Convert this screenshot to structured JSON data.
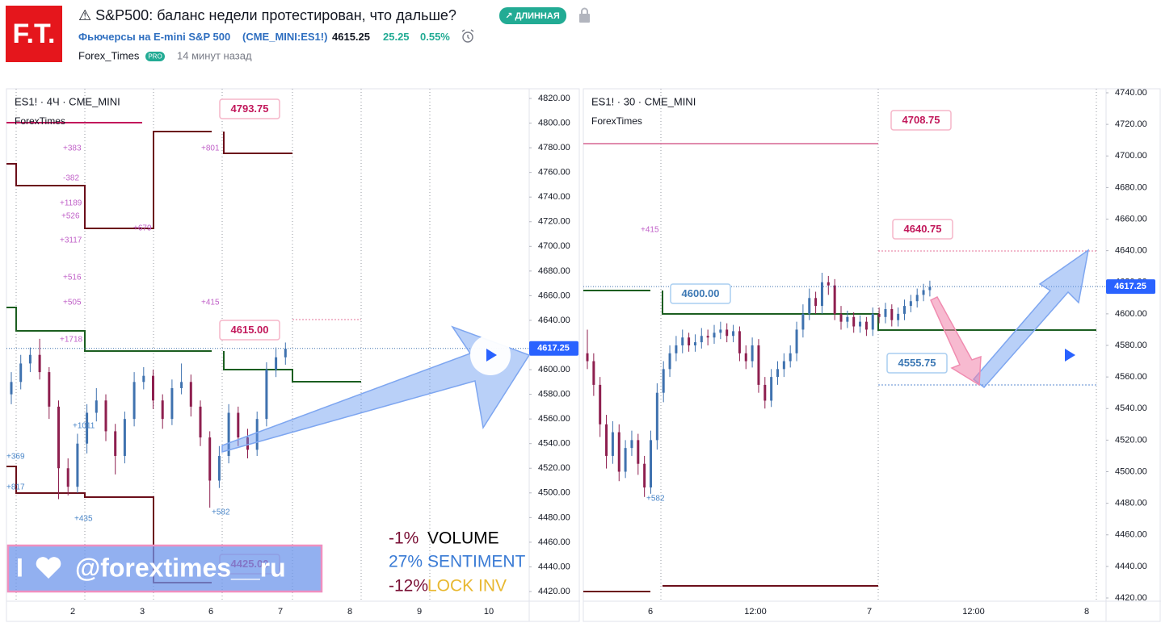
{
  "header": {
    "logo": "F.T.",
    "title": "⚠ S&P500: баланс недели протестирован, что дальше?",
    "badge": "↗ ДЛИННАЯ",
    "symbol_name": "Фьючерсы на E-mini S&P 500",
    "symbol_code": "(CME_MINI:ES1!)",
    "price": "4615.25",
    "change": "25.25",
    "change_pct": "0.55%",
    "author": "Forex_Times",
    "author_badge": "PRO",
    "time": "14 минут назад"
  },
  "charts": [
    {
      "type": "candlestick",
      "title": "ES1! · 4Ч · CME_MINI",
      "indicator": "ForexTimes",
      "ylim": [
        4420,
        4820
      ],
      "yticks": [
        {
          "value": 4420,
          "label": "4420.00"
        },
        {
          "value": 4440,
          "label": "4440.00"
        },
        {
          "value": 4460,
          "label": "4460.00"
        },
        {
          "value": 4480,
          "label": "4480.00"
        },
        {
          "value": 4500,
          "label": "4500.00"
        },
        {
          "value": 4520,
          "label": "4520.00"
        },
        {
          "value": 4540,
          "label": "4540.00"
        },
        {
          "value": 4560,
          "label": "4560.00"
        },
        {
          "value": 4580,
          "label": "4580.00"
        },
        {
          "value": 4600,
          "label": "4600.00"
        },
        {
          "value": 4620,
          "label": "4620.00"
        },
        {
          "value": 4640,
          "label": "4640.00"
        },
        {
          "value": 4660,
          "label": "4660.00"
        },
        {
          "value": 4680,
          "label": "4680.00"
        },
        {
          "value": 4700,
          "label": "4700.00"
        },
        {
          "value": 4720,
          "label": "4720.00"
        },
        {
          "value": 4740,
          "label": "4740.00"
        },
        {
          "value": 4760,
          "label": "4760.00"
        },
        {
          "value": 4780,
          "label": "4780.00"
        },
        {
          "value": 4800,
          "label": "4800.00"
        },
        {
          "value": 4820,
          "label": "4820.00"
        }
      ],
      "xticks": [
        "2",
        "3",
        "6",
        "7",
        "8",
        "9",
        "10"
      ],
      "ohlc": [
        [
          4580,
          4598,
          4572,
          4590
        ],
        [
          4590,
          4612,
          4584,
          4605
        ],
        [
          4605,
          4618,
          4598,
          4612
        ],
        [
          4612,
          4625,
          4592,
          4598
        ],
        [
          4598,
          4602,
          4560,
          4570
        ],
        [
          4570,
          4575,
          4495,
          4520
        ],
        [
          4520,
          4528,
          4498,
          4505
        ],
        [
          4505,
          4548,
          4500,
          4540
        ],
        [
          4540,
          4572,
          4532,
          4565
        ],
        [
          4565,
          4585,
          4558,
          4575
        ],
        [
          4575,
          4580,
          4542,
          4550
        ],
        [
          4550,
          4556,
          4515,
          4530
        ],
        [
          4530,
          4566,
          4524,
          4560
        ],
        [
          4560,
          4598,
          4554,
          4590
        ],
        [
          4590,
          4602,
          4584,
          4595
        ],
        [
          4595,
          4600,
          4568,
          4575
        ],
        [
          4575,
          4580,
          4552,
          4560
        ],
        [
          4560,
          4592,
          4555,
          4585
        ],
        [
          4585,
          4605,
          4580,
          4590
        ],
        [
          4590,
          4596,
          4562,
          4570
        ],
        [
          4570,
          4575,
          4538,
          4545
        ],
        [
          4545,
          4550,
          4488,
          4510
        ],
        [
          4510,
          4538,
          4504,
          4530
        ],
        [
          4530,
          4572,
          4524,
          4565
        ],
        [
          4565,
          4570,
          4538,
          4545
        ],
        [
          4545,
          4552,
          4528,
          4535
        ],
        [
          4535,
          4566,
          4530,
          4560
        ],
        [
          4560,
          4606,
          4554,
          4600
        ],
        [
          4600,
          4618,
          4594,
          4610
        ],
        [
          4610,
          4622,
          4604,
          4617
        ]
      ],
      "last_price": {
        "value": 4617.25,
        "label": "4617.25"
      },
      "callouts": [
        "4793.75",
        "4615.00",
        "4425.00"
      ],
      "notes": [
        "+383",
        "-382",
        "+1189",
        "+526",
        "+679",
        "+3117",
        "+516",
        "+505",
        "+1718",
        "+1011",
        "+369",
        "+817",
        "+435",
        "+582",
        "+415",
        "+801"
      ],
      "overlay": {
        "rows": [
          [
            "-1%",
            "VOLUME"
          ],
          [
            "27%",
            "SENTIMENT"
          ],
          [
            "-12%",
            "LOCK INV"
          ]
        ],
        "watermark": [
          "I",
          "@forextimes__ru"
        ]
      }
    },
    {
      "type": "candlestick",
      "title": "ES1! · 30 · CME_MINI",
      "indicator": "ForexTimes",
      "ylim": [
        4420,
        4740
      ],
      "yticks": [
        {
          "value": 4420,
          "label": "4420.00"
        },
        {
          "value": 4440,
          "label": "4440.00"
        },
        {
          "value": 4460,
          "label": "4460.00"
        },
        {
          "value": 4480,
          "label": "4480.00"
        },
        {
          "value": 4500,
          "label": "4500.00"
        },
        {
          "value": 4520,
          "label": "4520.00"
        },
        {
          "value": 4540,
          "label": "4540.00"
        },
        {
          "value": 4560,
          "label": "4560.00"
        },
        {
          "value": 4580,
          "label": "4580.00"
        },
        {
          "value": 4600,
          "label": "4600.00"
        },
        {
          "value": 4620,
          "label": "4620.00"
        },
        {
          "value": 4640,
          "label": "4640.00"
        },
        {
          "value": 4660,
          "label": "4660.00"
        },
        {
          "value": 4680,
          "label": "4680.00"
        },
        {
          "value": 4700,
          "label": "4700.00"
        },
        {
          "value": 4720,
          "label": "4720.00"
        },
        {
          "value": 4740,
          "label": "4740.00"
        }
      ],
      "xticks": [
        "6",
        "12:00",
        "7",
        "12:00",
        "8"
      ],
      "ohlc": [
        [
          4575,
          4590,
          4565,
          4570
        ],
        [
          4570,
          4575,
          4548,
          4555
        ],
        [
          4555,
          4560,
          4522,
          4530
        ],
        [
          4530,
          4536,
          4502,
          4510
        ],
        [
          4510,
          4532,
          4505,
          4525
        ],
        [
          4525,
          4530,
          4494,
          4500
        ],
        [
          4500,
          4520,
          4496,
          4515
        ],
        [
          4515,
          4526,
          4510,
          4520
        ],
        [
          4520,
          4524,
          4498,
          4505
        ],
        [
          4505,
          4510,
          4484,
          4490
        ],
        [
          4490,
          4526,
          4486,
          4520
        ],
        [
          4520,
          4556,
          4514,
          4550
        ],
        [
          4550,
          4570,
          4544,
          4565
        ],
        [
          4565,
          4580,
          4560,
          4575
        ],
        [
          4575,
          4586,
          4570,
          4580
        ],
        [
          4580,
          4590,
          4575,
          4585
        ],
        [
          4585,
          4588,
          4576,
          4580
        ],
        [
          4580,
          4587,
          4576,
          4582
        ],
        [
          4582,
          4591,
          4578,
          4586
        ],
        [
          4586,
          4590,
          4580,
          4585
        ],
        [
          4585,
          4593,
          4581,
          4588
        ],
        [
          4588,
          4595,
          4584,
          4590
        ],
        [
          4590,
          4594,
          4582,
          4586
        ],
        [
          4586,
          4593,
          4582,
          4589
        ],
        [
          4589,
          4592,
          4570,
          4575
        ],
        [
          4575,
          4580,
          4565,
          4570
        ],
        [
          4570,
          4585,
          4566,
          4580
        ],
        [
          4580,
          4584,
          4550,
          4555
        ],
        [
          4555,
          4560,
          4540,
          4545
        ],
        [
          4545,
          4565,
          4541,
          4560
        ],
        [
          4560,
          4570,
          4555,
          4565
        ],
        [
          4565,
          4575,
          4560,
          4570
        ],
        [
          4570,
          4580,
          4566,
          4575
        ],
        [
          4575,
          4595,
          4570,
          4590
        ],
        [
          4590,
          4606,
          4585,
          4600
        ],
        [
          4600,
          4616,
          4596,
          4610
        ],
        [
          4610,
          4614,
          4600,
          4605
        ],
        [
          4605,
          4626,
          4600,
          4620
        ],
        [
          4620,
          4624,
          4612,
          4618
        ],
        [
          4618,
          4622,
          4596,
          4600
        ],
        [
          4600,
          4605,
          4590,
          4595
        ],
        [
          4595,
          4602,
          4591,
          4598
        ],
        [
          4598,
          4601,
          4588,
          4592
        ],
        [
          4592,
          4599,
          4588,
          4595
        ],
        [
          4595,
          4598,
          4586,
          4590
        ],
        [
          4590,
          4604,
          4586,
          4600
        ],
        [
          4600,
          4604,
          4594,
          4598
        ],
        [
          4598,
          4607,
          4594,
          4603
        ],
        [
          4603,
          4606,
          4592,
          4596
        ],
        [
          4596,
          4604,
          4592,
          4600
        ],
        [
          4600,
          4609,
          4596,
          4605
        ],
        [
          4605,
          4612,
          4601,
          4608
        ],
        [
          4608,
          4616,
          4604,
          4612
        ],
        [
          4612,
          4619,
          4608,
          4615
        ],
        [
          4615,
          4621,
          4611,
          4617
        ]
      ],
      "last_price": {
        "value": 4617.25,
        "label": "4617.25"
      },
      "callouts": [
        "4708.75",
        "4640.75",
        "4600.00",
        "4555.75"
      ],
      "notes": [
        "+415",
        "+582"
      ]
    }
  ]
}
